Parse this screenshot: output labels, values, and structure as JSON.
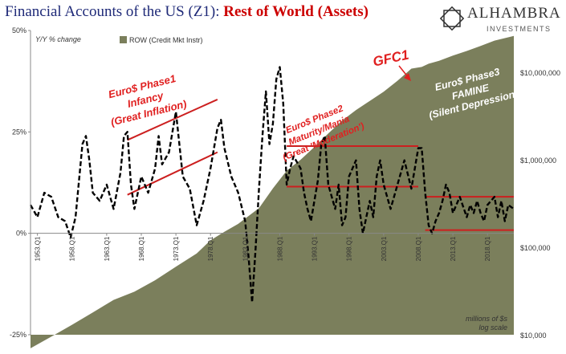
{
  "chart_data": {
    "type": "area",
    "title_main": "Financial Accounts of the US (Z1): ",
    "title_highlight": "Rest of World (Assets)",
    "left_axis_label": "Y/Y % change",
    "left_ylim": [
      -25,
      50
    ],
    "left_ticks": [
      "50%",
      "25%",
      "0%",
      "-25%"
    ],
    "right_axis_scale": "log",
    "right_ylim": [
      10000,
      30000000
    ],
    "right_ticks": [
      "$10,000,000",
      "$1,000,000",
      "$100,000",
      "$10,000"
    ],
    "right_axis_note_line1": "millions of $s",
    "right_axis_note_line2": "log scale",
    "x_ticks": [
      "1953.Q1",
      "1958.Q1",
      "1963.Q1",
      "1968.Q1",
      "1973.Q1",
      "1978.Q1",
      "1983.Q1",
      "1988.Q1",
      "1993.Q1",
      "1998.Q1",
      "2003.Q1",
      "2008.Q1",
      "2013.Q1",
      "2018.Q1"
    ],
    "legend": {
      "label": "ROW (Credit Mkt Instr)",
      "color": "#7b7f5c",
      "placement": "top-left"
    },
    "series": [
      {
        "name": "ROW (Credit Mkt Instr)",
        "kind": "area",
        "axis": "right",
        "color": "#7b7f5c",
        "points": [
          [
            1952.0,
            7000
          ],
          [
            1955,
            9500
          ],
          [
            1958,
            13000
          ],
          [
            1961,
            18000
          ],
          [
            1964,
            25000
          ],
          [
            1967,
            31000
          ],
          [
            1970,
            42000
          ],
          [
            1973,
            60000
          ],
          [
            1976,
            85000
          ],
          [
            1978,
            120000
          ],
          [
            1980,
            150000
          ],
          [
            1982,
            185000
          ],
          [
            1985,
            280000
          ],
          [
            1987,
            470000
          ],
          [
            1989,
            750000
          ],
          [
            1991,
            1000000
          ],
          [
            1993,
            1400000
          ],
          [
            1995,
            2000000
          ],
          [
            1997,
            2800000
          ],
          [
            1999,
            3700000
          ],
          [
            2001,
            4700000
          ],
          [
            2003,
            6000000
          ],
          [
            2005,
            8000000
          ],
          [
            2007,
            11000000
          ],
          [
            2008.5,
            11500000
          ],
          [
            2009.5,
            12500000
          ],
          [
            2011,
            13500000
          ],
          [
            2013,
            15500000
          ],
          [
            2015,
            17500000
          ],
          [
            2017,
            20000000
          ],
          [
            2019,
            23000000
          ],
          [
            2021.8,
            26000000
          ]
        ]
      },
      {
        "name": "Y/Y % change",
        "kind": "line",
        "axis": "left",
        "color": "#000000",
        "points": [
          [
            1952.0,
            7
          ],
          [
            1953.0,
            4
          ],
          [
            1954.0,
            10
          ],
          [
            1955.0,
            9
          ],
          [
            1956.0,
            4
          ],
          [
            1957.0,
            3
          ],
          [
            1957.8,
            -1
          ],
          [
            1958.5,
            4
          ],
          [
            1959.5,
            22
          ],
          [
            1960.0,
            24
          ],
          [
            1960.5,
            18
          ],
          [
            1961.0,
            10
          ],
          [
            1962.0,
            8
          ],
          [
            1963.0,
            12
          ],
          [
            1964.0,
            6
          ],
          [
            1965.0,
            15
          ],
          [
            1965.5,
            24
          ],
          [
            1966.0,
            25
          ],
          [
            1966.5,
            12
          ],
          [
            1967.0,
            6
          ],
          [
            1968.0,
            14
          ],
          [
            1969.0,
            10
          ],
          [
            1970.0,
            16
          ],
          [
            1970.5,
            24
          ],
          [
            1971.0,
            17
          ],
          [
            1972.0,
            20
          ],
          [
            1973.0,
            30
          ],
          [
            1973.5,
            22
          ],
          [
            1974.0,
            14
          ],
          [
            1975.0,
            11
          ],
          [
            1976.0,
            2
          ],
          [
            1977.0,
            8
          ],
          [
            1978.0,
            16
          ],
          [
            1979.0,
            26
          ],
          [
            1979.5,
            28
          ],
          [
            1980.0,
            21
          ],
          [
            1981.0,
            14
          ],
          [
            1982.0,
            10
          ],
          [
            1983.0,
            3
          ],
          [
            1983.5,
            -6
          ],
          [
            1984.0,
            -17
          ],
          [
            1984.5,
            -4
          ],
          [
            1985.0,
            11
          ],
          [
            1985.5,
            24
          ],
          [
            1986.0,
            35
          ],
          [
            1986.5,
            22
          ],
          [
            1987.0,
            27
          ],
          [
            1987.5,
            38
          ],
          [
            1988.0,
            41
          ],
          [
            1988.5,
            32
          ],
          [
            1989.0,
            12
          ],
          [
            1989.5,
            16
          ],
          [
            1990.0,
            19
          ],
          [
            1991.0,
            16
          ],
          [
            1991.5,
            10
          ],
          [
            1992.0,
            6
          ],
          [
            1992.5,
            3
          ],
          [
            1993.0,
            8
          ],
          [
            1993.5,
            13
          ],
          [
            1994.0,
            22
          ],
          [
            1994.5,
            24
          ],
          [
            1995.0,
            12
          ],
          [
            1996.0,
            6
          ],
          [
            1996.5,
            12
          ],
          [
            1997.0,
            2
          ],
          [
            1997.5,
            4
          ],
          [
            1998.0,
            14
          ],
          [
            1999.0,
            18
          ],
          [
            1999.5,
            6
          ],
          [
            2000.0,
            0
          ],
          [
            2001.0,
            8
          ],
          [
            2001.5,
            4
          ],
          [
            2002.0,
            14
          ],
          [
            2002.5,
            18
          ],
          [
            2003.0,
            12
          ],
          [
            2004.0,
            6
          ],
          [
            2005.0,
            12
          ],
          [
            2006.0,
            18
          ],
          [
            2007.0,
            11
          ],
          [
            2008.0,
            21
          ],
          [
            2008.5,
            21
          ],
          [
            2009.0,
            10
          ],
          [
            2009.5,
            2
          ],
          [
            2010.0,
            0
          ],
          [
            2010.5,
            3
          ],
          [
            2011.0,
            5
          ],
          [
            2011.5,
            8
          ],
          [
            2012.0,
            12
          ],
          [
            2012.5,
            10
          ],
          [
            2013.0,
            5
          ],
          [
            2014.0,
            9
          ],
          [
            2015.0,
            4
          ],
          [
            2015.5,
            7
          ],
          [
            2016.0,
            5
          ],
          [
            2016.5,
            8
          ],
          [
            2017.0,
            5
          ],
          [
            2017.5,
            3
          ],
          [
            2018.0,
            7
          ],
          [
            2019.0,
            9
          ],
          [
            2019.5,
            4
          ],
          [
            2020.0,
            8
          ],
          [
            2020.5,
            3
          ],
          [
            2021.0,
            7
          ],
          [
            2021.8,
            6
          ]
        ]
      }
    ],
    "trend_lines": [
      {
        "color": "#cc1f1f",
        "points": [
          [
            1966,
            23
          ],
          [
            1979,
            33
          ]
        ]
      },
      {
        "color": "#cc1f1f",
        "points": [
          [
            1966,
            9.5
          ],
          [
            1979,
            20
          ]
        ]
      },
      {
        "color": "#cc1f1f",
        "points": [
          [
            1989,
            21.5
          ],
          [
            2008,
            21.5
          ]
        ]
      },
      {
        "color": "#cc1f1f",
        "points": [
          [
            1989,
            11.5
          ],
          [
            2008,
            11.5
          ]
        ]
      },
      {
        "color": "#cc1f1f",
        "points": [
          [
            2009,
            9
          ],
          [
            2021.8,
            9
          ]
        ]
      },
      {
        "color": "#cc1f1f",
        "points": [
          [
            2009,
            0.8
          ],
          [
            2021.8,
            0.8
          ]
        ]
      }
    ],
    "annotations": [
      {
        "lines": [
          "Euro$ Phase1",
          "Infancy",
          "(Great Inflation)"
        ],
        "color": "#e02020"
      },
      {
        "lines": [
          "Euro$ Phase2",
          "Maturity/Mania",
          "(Great 'Moderation')"
        ],
        "color": "#e02020"
      },
      {
        "lines": [
          "GFC1"
        ],
        "color": "#e02020"
      },
      {
        "lines": [
          "Euro$ Phase3",
          "FAMINE",
          "(Silent Depression)"
        ],
        "color": "#ffffff"
      }
    ],
    "grid": false
  },
  "logo": {
    "name": "ALHAMBRA",
    "subtitle": "INVESTMENTS",
    "color": "#333333"
  }
}
